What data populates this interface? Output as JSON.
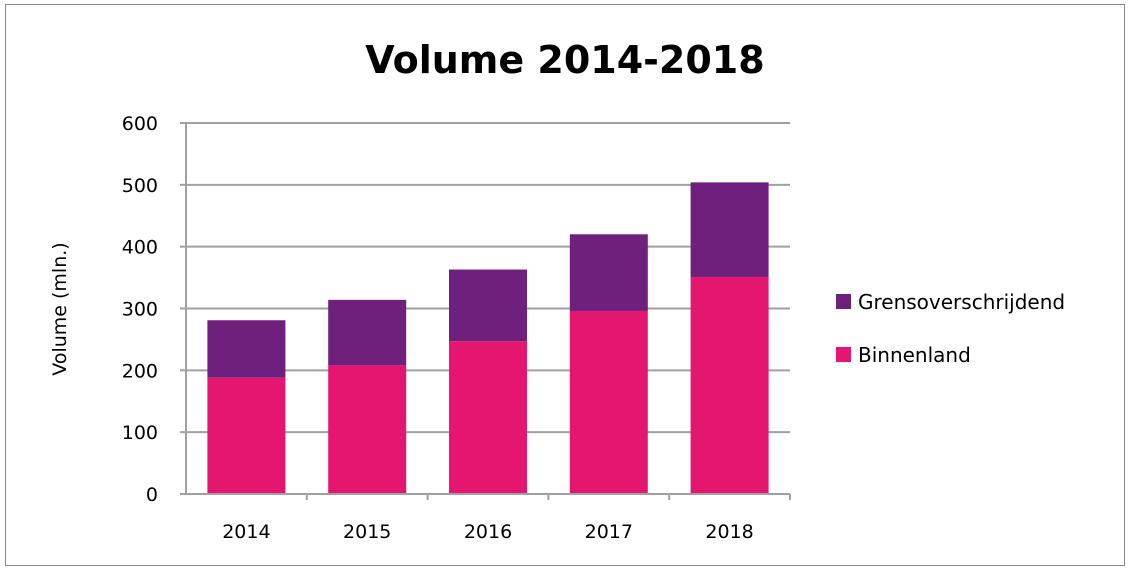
{
  "chart_data": {
    "type": "bar",
    "stacked": true,
    "title": "Volume 2014-2018",
    "xlabel": "",
    "ylabel": "Volume (mln.)",
    "ylim": [
      0,
      600
    ],
    "yticks": [
      0,
      100,
      200,
      300,
      400,
      500,
      600
    ],
    "grid": true,
    "legend_position": "right",
    "categories": [
      "2014",
      "2015",
      "2016",
      "2017",
      "2018"
    ],
    "series": [
      {
        "name": "Binnenland",
        "color": "#e5166f",
        "values": [
          188,
          208,
          247,
          296,
          351
        ]
      },
      {
        "name": "Grensoverschrijdend",
        "color": "#6e207c",
        "values": [
          93,
          106,
          116,
          124,
          153
        ]
      }
    ],
    "legend": [
      {
        "name": "Grensoverschrijdend",
        "color": "#6e207c"
      },
      {
        "name": "Binnenland",
        "color": "#e5166f"
      }
    ]
  }
}
